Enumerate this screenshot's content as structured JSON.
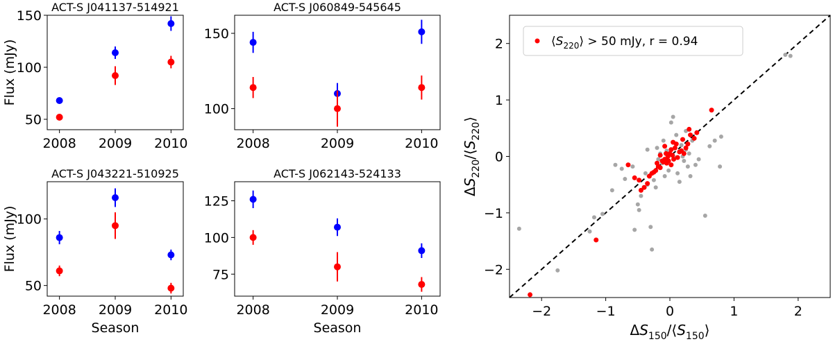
{
  "colors": {
    "blue": "#0000ff",
    "red": "#ff0000",
    "grey": "#a6a6a6",
    "axis": "#000000"
  },
  "chart_data": [
    {
      "type": "scatter",
      "title": "ACT-S J041137-514921",
      "xlabel": "",
      "ylabel": "Flux (mJy)",
      "categories": [
        "2008",
        "2009",
        "2010"
      ],
      "ylim": [
        40,
        150
      ],
      "yticks": [
        50,
        100,
        150
      ],
      "series": [
        {
          "color": "blue",
          "values": [
            68,
            114,
            142
          ],
          "errors": [
            3,
            6,
            7
          ]
        },
        {
          "color": "red",
          "values": [
            52,
            92,
            105
          ],
          "errors": [
            3,
            9,
            6
          ]
        }
      ]
    },
    {
      "type": "scatter",
      "title": "ACT-S J060849-545645",
      "xlabel": "",
      "ylabel": "",
      "categories": [
        "2008",
        "2009",
        "2010"
      ],
      "ylim": [
        86,
        162
      ],
      "yticks": [
        100,
        150
      ],
      "series": [
        {
          "color": "blue",
          "values": [
            144,
            110,
            151
          ],
          "errors": [
            7,
            7,
            8
          ]
        },
        {
          "color": "red",
          "values": [
            114,
            100,
            114
          ],
          "errors": [
            7,
            12,
            8
          ]
        }
      ]
    },
    {
      "type": "scatter",
      "title": "ACT-S J043221-510925",
      "xlabel": "Season",
      "ylabel": "Flux (mJy)",
      "categories": [
        "2008",
        "2009",
        "2010"
      ],
      "ylim": [
        42,
        128
      ],
      "yticks": [
        50,
        100
      ],
      "series": [
        {
          "color": "blue",
          "values": [
            86,
            116,
            73
          ],
          "errors": [
            5,
            7,
            4
          ]
        },
        {
          "color": "red",
          "values": [
            61,
            95,
            48
          ],
          "errors": [
            4,
            10,
            4
          ]
        }
      ]
    },
    {
      "type": "scatter",
      "title": "ACT-S J062143-524133",
      "xlabel": "Season",
      "ylabel": "",
      "categories": [
        "2008",
        "2009",
        "2010"
      ],
      "ylim": [
        60,
        138
      ],
      "yticks": [
        75,
        100,
        125
      ],
      "series": [
        {
          "color": "blue",
          "values": [
            126,
            107,
            91
          ],
          "errors": [
            6,
            6,
            5
          ]
        },
        {
          "color": "red",
          "values": [
            100,
            80,
            68
          ],
          "errors": [
            5,
            10,
            5
          ]
        }
      ]
    },
    {
      "type": "scatter",
      "title": "",
      "xlabel": "ΔS150/⟨S150⟩",
      "ylabel": "ΔS220/⟨S220⟩",
      "xlim": [
        -2.5,
        2.5
      ],
      "ylim": [
        -2.5,
        2.5
      ],
      "xticks": [
        -2,
        -1,
        0,
        1,
        2
      ],
      "yticks": [
        -2,
        -1,
        0,
        1,
        2
      ],
      "xtick_labels": [
        "−2",
        "−1",
        "0",
        "1",
        "2"
      ],
      "ytick_labels": [
        "−2",
        "−1",
        "0",
        "1",
        "2"
      ],
      "legend": {
        "placement": "top-left",
        "label": "⟨S220⟩ > 50 mJy, r = 0.94"
      },
      "reference_line": {
        "style": "dashed",
        "slope": 1,
        "intercept": 0
      },
      "grey_points": [
        [
          -2.35,
          -1.28
        ],
        [
          -1.75,
          -2.02
        ],
        [
          -1.25,
          -1.33
        ],
        [
          -1.18,
          -1.08
        ],
        [
          -1.05,
          -1.02
        ],
        [
          -0.85,
          -0.15
        ],
        [
          -0.75,
          -0.22
        ],
        [
          -0.7,
          -0.4
        ],
        [
          -0.58,
          -0.18
        ],
        [
          -0.55,
          -1.3
        ],
        [
          -0.5,
          -0.85
        ],
        [
          -0.48,
          -0.95
        ],
        [
          -0.45,
          -0.7
        ],
        [
          -0.38,
          -0.3
        ],
        [
          -0.35,
          -0.5
        ],
        [
          -0.3,
          -1.25
        ],
        [
          -0.28,
          -1.65
        ],
        [
          -0.25,
          -0.42
        ],
        [
          -0.22,
          -0.55
        ],
        [
          -0.2,
          0.15
        ],
        [
          -0.18,
          -0.05
        ],
        [
          -0.15,
          0.05
        ],
        [
          -0.12,
          -0.12
        ],
        [
          -0.1,
          0.28
        ],
        [
          -0.08,
          -0.35
        ],
        [
          -0.05,
          0.1
        ],
        [
          -0.02,
          -0.25
        ],
        [
          0.0,
          0.05
        ],
        [
          0.02,
          0.6
        ],
        [
          0.05,
          0.7
        ],
        [
          0.08,
          -0.02
        ],
        [
          0.1,
          0.38
        ],
        [
          0.12,
          -0.3
        ],
        [
          0.15,
          -0.45
        ],
        [
          0.18,
          0.2
        ],
        [
          0.2,
          0.0
        ],
        [
          0.22,
          -0.08
        ],
        [
          0.25,
          0.12
        ],
        [
          0.28,
          -0.18
        ],
        [
          0.3,
          0.05
        ],
        [
          0.32,
          -0.35
        ],
        [
          0.35,
          0.28
        ],
        [
          0.38,
          0.32
        ],
        [
          0.4,
          -0.15
        ],
        [
          0.45,
          -0.05
        ],
        [
          0.55,
          -1.05
        ],
        [
          0.62,
          0.18
        ],
        [
          0.7,
          0.28
        ],
        [
          0.78,
          -0.18
        ],
        [
          0.8,
          0.35
        ],
        [
          -0.9,
          -0.6
        ],
        [
          0.25,
          0.45
        ],
        [
          -0.35,
          0.12
        ],
        [
          1.8,
          1.8
        ],
        [
          1.88,
          1.78
        ]
      ],
      "red_points": [
        [
          -2.18,
          -2.45
        ],
        [
          -1.15,
          -1.48
        ],
        [
          -0.65,
          -0.15
        ],
        [
          -0.55,
          -0.38
        ],
        [
          -0.48,
          -0.42
        ],
        [
          -0.45,
          -0.6
        ],
        [
          -0.4,
          -0.55
        ],
        [
          -0.35,
          -0.48
        ],
        [
          -0.32,
          -0.35
        ],
        [
          -0.28,
          -0.3
        ],
        [
          -0.25,
          -0.28
        ],
        [
          -0.22,
          -0.25
        ],
        [
          -0.2,
          -0.12
        ],
        [
          -0.18,
          -0.18
        ],
        [
          -0.15,
          -0.2
        ],
        [
          -0.12,
          -0.08
        ],
        [
          -0.1,
          -0.1
        ],
        [
          -0.08,
          -0.05
        ],
        [
          -0.06,
          0.05
        ],
        [
          -0.05,
          -0.12
        ],
        [
          -0.03,
          0.0
        ],
        [
          -0.02,
          -0.08
        ],
        [
          0.0,
          0.05
        ],
        [
          0.02,
          0.12
        ],
        [
          0.04,
          0.02
        ],
        [
          0.05,
          0.25
        ],
        [
          0.06,
          -0.05
        ],
        [
          0.08,
          0.15
        ],
        [
          0.1,
          0.22
        ],
        [
          0.12,
          -0.02
        ],
        [
          0.15,
          0.08
        ],
        [
          0.18,
          0.1
        ],
        [
          0.2,
          0.3
        ],
        [
          0.22,
          0.05
        ],
        [
          0.25,
          0.15
        ],
        [
          0.28,
          0.22
        ],
        [
          0.3,
          0.48
        ],
        [
          0.32,
          0.38
        ],
        [
          0.38,
          0.32
        ],
        [
          0.42,
          0.42
        ],
        [
          0.65,
          0.82
        ],
        [
          -0.08,
          0.18
        ],
        [
          0.02,
          -0.15
        ],
        [
          -0.15,
          0.02
        ]
      ]
    }
  ]
}
